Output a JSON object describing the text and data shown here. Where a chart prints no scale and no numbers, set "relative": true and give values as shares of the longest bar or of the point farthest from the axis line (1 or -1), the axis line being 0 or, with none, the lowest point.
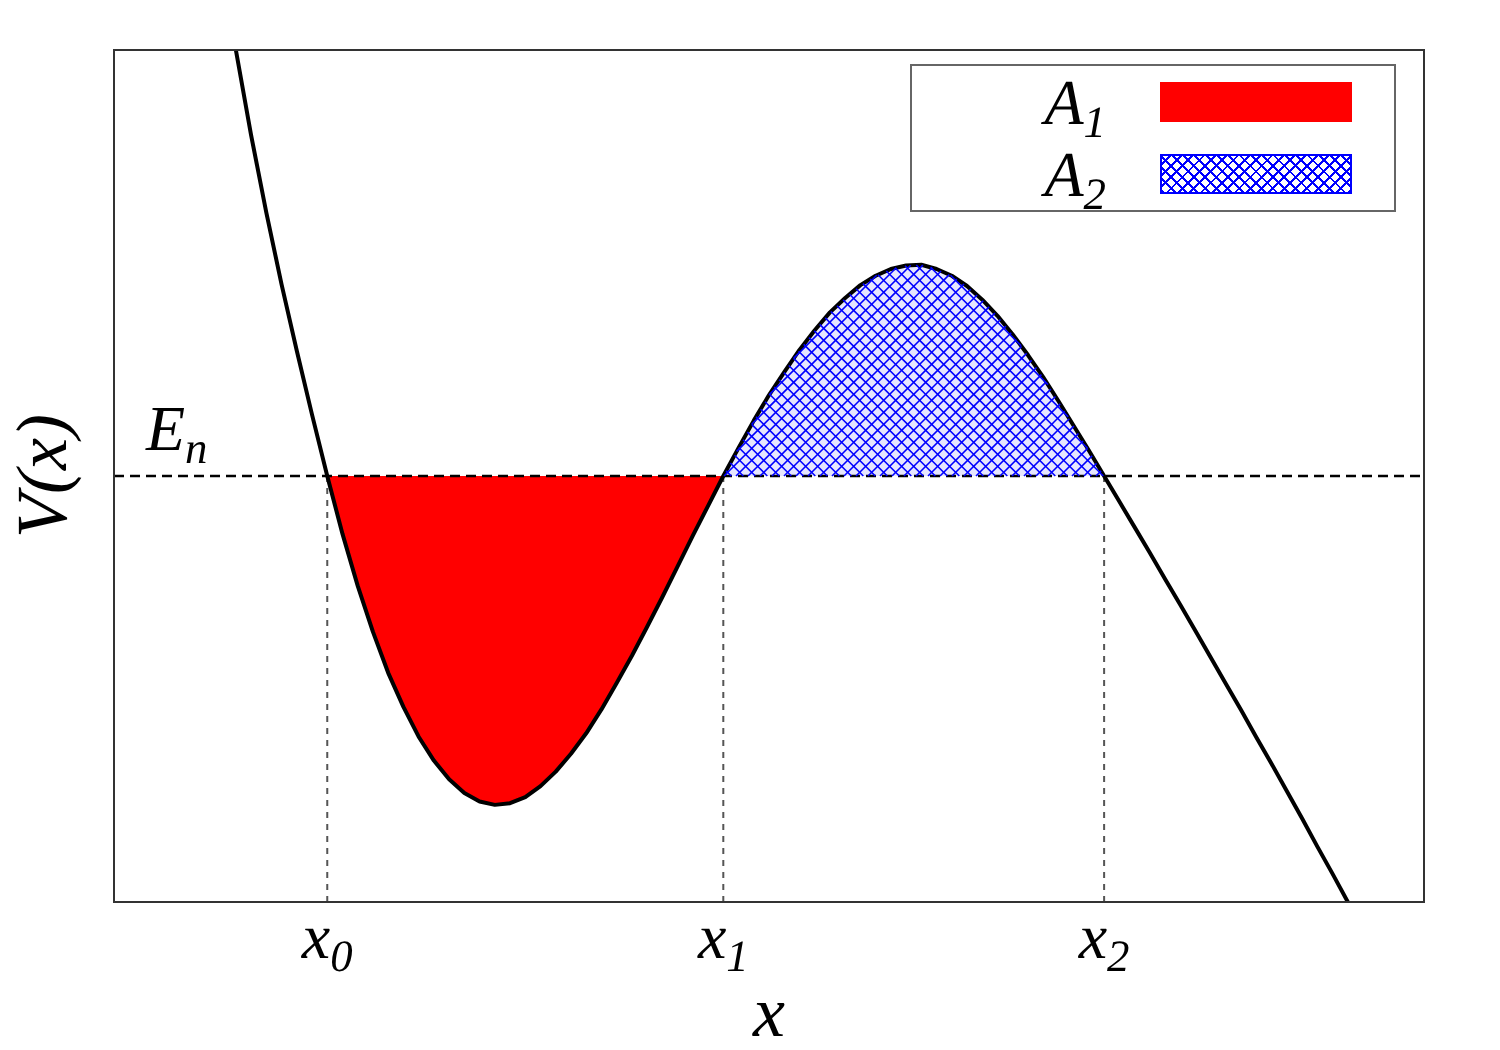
{
  "chart_data": {
    "type": "line",
    "xlabel": "x",
    "ylabel": "V(x)",
    "relative": true,
    "legend": "top right",
    "categories": [
      null,
      null,
      null,
      null,
      null,
      null,
      null,
      null,
      null,
      null,
      null,
      null,
      null,
      null,
      "x$_{0}$",
      null,
      null,
      null,
      null,
      null,
      null,
      null,
      null,
      null,
      null,
      null,
      null,
      null,
      null,
      null,
      null,
      null,
      null,
      null,
      null,
      null,
      null,
      null,
      null,
      null,
      "x$_{1}$",
      null,
      null,
      null,
      null,
      null,
      null,
      null,
      null,
      null,
      null,
      null,
      null,
      null,
      null,
      null,
      null,
      null,
      null,
      null,
      null,
      null,
      null,
      null,
      null,
      "x$_{2}$",
      null,
      null,
      null,
      null,
      null,
      null,
      null,
      null,
      null,
      null,
      null,
      null,
      null,
      null,
      null,
      null,
      null,
      null,
      null,
      null,
      null
    ],
    "series": [
      {
        "color": "#000000",
        "values": [
          null,
          null,
          null,
          null,
          null,
          null,
          null,
          null,
          1,
          0.8,
          0.618,
          0.45,
          0.294,
          0.144,
          0,
          -0.136,
          -0.258,
          -0.366,
          -0.462,
          -0.542,
          -0.612,
          -0.668,
          -0.712,
          -0.744,
          -0.764,
          -0.772,
          -0.768,
          -0.754,
          -0.728,
          -0.694,
          -0.652,
          -0.604,
          -0.548,
          -0.486,
          -0.422,
          -0.354,
          -0.284,
          -0.212,
          -0.14,
          -0.07,
          0,
          0.066,
          0.13,
          0.19,
          0.244,
          0.296,
          0.342,
          0.384,
          0.418,
          0.448,
          0.47,
          0.486,
          0.494,
          0.496,
          0.486,
          0.47,
          0.446,
          0.414,
          0.376,
          0.332,
          0.284,
          0.232,
          0.176,
          0.118,
          0.06,
          0,
          -0.06,
          -0.12,
          -0.18,
          -0.242,
          -0.302,
          -0.364,
          -0.426,
          -0.488,
          -0.55,
          -0.614,
          -0.676,
          -0.74,
          -0.804,
          -0.87,
          -0.934,
          -1,
          null,
          null,
          null,
          null,
          null
        ]
      },
      {
        "name": "A$_{1}$",
        "type": "area",
        "color": "#ff0000",
        "values": [
          null,
          null,
          null,
          null,
          null,
          null,
          null,
          null,
          null,
          null,
          null,
          null,
          null,
          null,
          0,
          -0.136,
          -0.258,
          -0.366,
          -0.462,
          -0.542,
          -0.612,
          -0.668,
          -0.712,
          -0.744,
          -0.764,
          -0.772,
          -0.768,
          -0.754,
          -0.728,
          -0.694,
          -0.652,
          -0.604,
          -0.548,
          -0.486,
          -0.422,
          -0.354,
          -0.284,
          -0.212,
          -0.14,
          -0.07,
          0,
          null,
          null,
          null,
          null,
          null,
          null,
          null,
          null,
          null,
          null,
          null,
          null,
          null,
          null,
          null,
          null,
          null,
          null,
          null,
          null,
          null,
          null,
          null,
          null,
          null,
          null,
          null,
          null,
          null,
          null,
          null,
          null,
          null,
          null,
          null,
          null,
          null,
          null,
          null,
          null,
          null,
          null,
          null,
          null,
          null,
          null
        ]
      },
      {
        "name": "A$_{2}$",
        "type": "area",
        "color": "#0000ff",
        "values": [
          null,
          null,
          null,
          null,
          null,
          null,
          null,
          null,
          null,
          null,
          null,
          null,
          null,
          null,
          null,
          null,
          null,
          null,
          null,
          null,
          null,
          null,
          null,
          null,
          null,
          null,
          null,
          null,
          null,
          null,
          null,
          null,
          null,
          null,
          null,
          null,
          null,
          null,
          null,
          null,
          0,
          0.066,
          0.13,
          0.19,
          0.244,
          0.296,
          0.342,
          0.384,
          0.418,
          0.448,
          0.47,
          0.486,
          0.494,
          0.496,
          0.486,
          0.47,
          0.446,
          0.414,
          0.376,
          0.332,
          0.284,
          0.232,
          0.176,
          0.118,
          0.06,
          0,
          null,
          null,
          null,
          null,
          null,
          null,
          null,
          null,
          null,
          null,
          null,
          null,
          null,
          null,
          null,
          null,
          null,
          null,
          null,
          null,
          null
        ]
      }
    ],
    "ref_lines": [
      {
        "axis": "y",
        "value": 0,
        "label": "E$_{n}$",
        "color": "#000000",
        "line_style": "dashed"
      }
    ]
  }
}
